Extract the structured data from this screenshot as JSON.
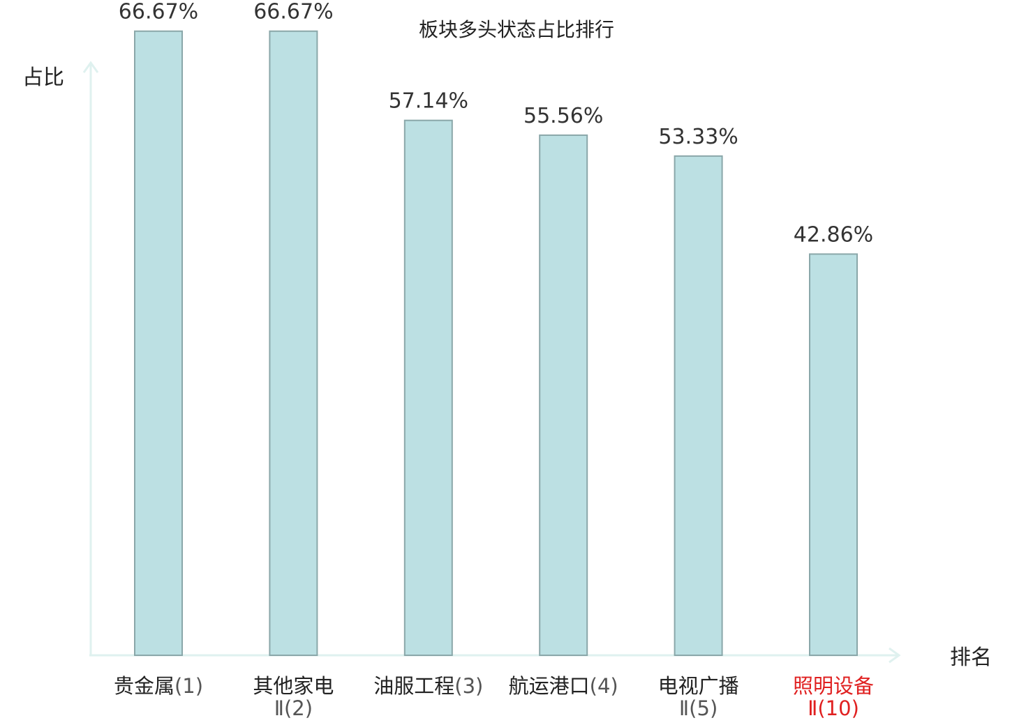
{
  "chart_data": {
    "type": "bar",
    "title": "板块多头状态占比排行",
    "ylabel": "占比",
    "xlabel": "排名",
    "ylim": [
      0,
      70
    ],
    "grid": false,
    "categories": [
      {
        "name": "贵金属",
        "rank_text": "(1)",
        "value": 66.67,
        "label": "66.67%",
        "highlight": false
      },
      {
        "name": "其他家电",
        "rank_text": "Ⅱ(2)",
        "value": 66.67,
        "label": "66.67%",
        "highlight": false
      },
      {
        "name": "油服工程",
        "rank_text": "(3)",
        "value": 57.14,
        "label": "57.14%",
        "highlight": false
      },
      {
        "name": "航运港口",
        "rank_text": "(4)",
        "value": 55.56,
        "label": "55.56%",
        "highlight": false
      },
      {
        "name": "电视广播",
        "rank_text": "Ⅱ(5)",
        "value": 53.33,
        "label": "53.33%",
        "highlight": false
      },
      {
        "name": "照明设备",
        "rank_text": "Ⅱ(10)",
        "value": 42.86,
        "label": "42.86%",
        "highlight": true
      }
    ],
    "colors": {
      "bar_fill": "#bce0e3",
      "bar_stroke": "#8aa7a9",
      "axis": "#dff1ef",
      "text": "#222222",
      "rank_text": "#555555",
      "highlight": "#e02020"
    }
  }
}
